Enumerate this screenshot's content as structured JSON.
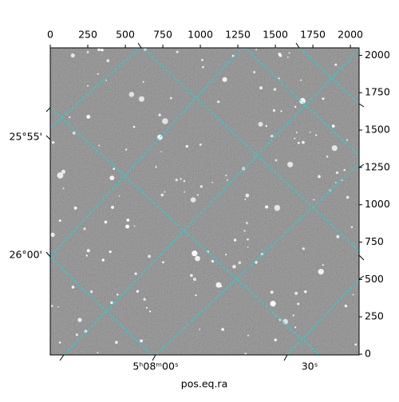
{
  "chart_data": {
    "type": "image",
    "xlabel": "pos.eq.ra",
    "xlim": [
      0,
      2058
    ],
    "ylim": [
      -5,
      2050
    ],
    "xticks": [
      0,
      250,
      500,
      750,
      1000,
      1250,
      1500,
      1750,
      2000
    ],
    "yticks": [
      0,
      250,
      500,
      750,
      1000,
      1250,
      1500,
      1750,
      2000
    ],
    "ra_tick_labels": [
      "5ʰ08ᵐ00ˢ",
      "30ˢ"
    ],
    "dec_tick_labels": [
      "25°55'",
      "26°00'"
    ],
    "grid_color": "#00e5e5"
  }
}
